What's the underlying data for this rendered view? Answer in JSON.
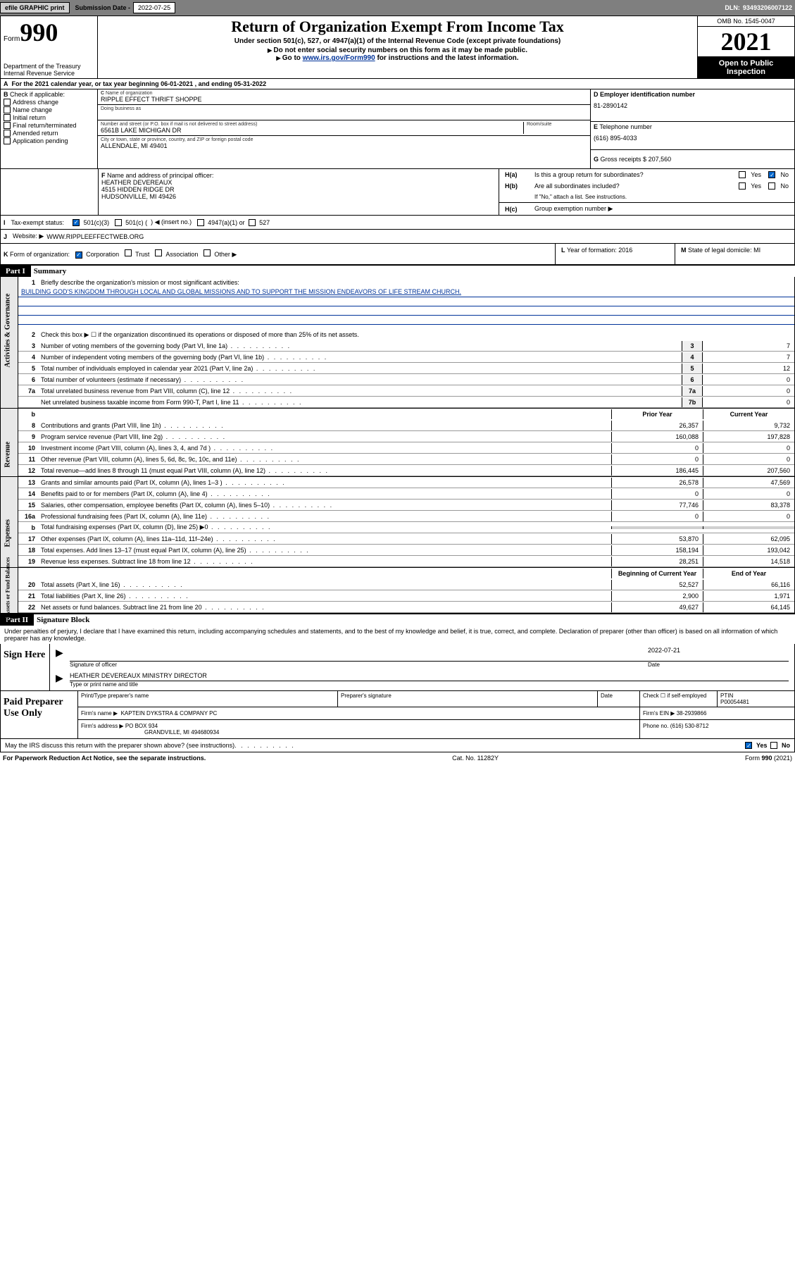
{
  "topbar": {
    "efile": "efile GRAPHIC print",
    "subdate_lbl": "Submission Date - ",
    "subdate": "2022-07-25",
    "dln_lbl": "DLN: ",
    "dln": "93493206007122"
  },
  "header": {
    "form_word": "Form",
    "form_num": "990",
    "dept": "Department of the Treasury\nInternal Revenue Service",
    "title": "Return of Organization Exempt From Income Tax",
    "sub": "Under section 501(c), 527, or 4947(a)(1) of the Internal Revenue Code (except private foundations)",
    "note1": "Do not enter social security numbers on this form as it may be made public.",
    "note2_pre": "Go to ",
    "note2_link": "www.irs.gov/Form990",
    "note2_post": " for instructions and the latest information.",
    "omb": "OMB No. 1545-0047",
    "year": "2021",
    "open": "Open to Public Inspection"
  },
  "rowA": "For the 2021 calendar year, or tax year beginning 06-01-2021   , and ending 05-31-2022",
  "boxB": {
    "lbl": "Check if applicable:",
    "items": [
      "Address change",
      "Name change",
      "Initial return",
      "Final return/terminated",
      "Amended return",
      "Application pending"
    ]
  },
  "boxC": {
    "name_lbl": "Name of organization",
    "name": "RIPPLE EFFECT THRIFT SHOPPE",
    "dba_lbl": "Doing business as",
    "addr_lbl": "Number and street (or P.O. box if mail is not delivered to street address)",
    "addr": "6561B LAKE MICHIGAN DR",
    "room_lbl": "Room/suite",
    "city_lbl": "City or town, state or province, country, and ZIP or foreign postal code",
    "city": "ALLENDALE, MI  49401"
  },
  "boxD": {
    "lbl": "Employer identification number",
    "val": "81-2890142"
  },
  "boxE": {
    "lbl": "Telephone number",
    "val": "(616) 895-4033"
  },
  "boxG": {
    "lbl": "Gross receipts $",
    "val": "207,560"
  },
  "boxF": {
    "lbl": "Name and address of principal officer:",
    "name": "HEATHER DEVEREAUX",
    "addr1": "4515 HIDDEN RIDGE DR",
    "addr2": "HUDSONVILLE, MI  49426"
  },
  "boxH": {
    "a_lbl": "Is this a group return for subordinates?",
    "b_lbl": "Are all subordinates included?",
    "b_note": "If \"No,\" attach a list. See instructions.",
    "c_lbl": "Group exemption number ▶"
  },
  "rowI": {
    "lbl": "Tax-exempt status:",
    "opt1": "501(c)(3)",
    "opt2_a": "501(c) (",
    "opt2_b": ") ◀ (insert no.)",
    "opt3": "4947(a)(1) or",
    "opt4": "527"
  },
  "rowJ": {
    "lbl": "Website: ▶",
    "val": "WWW.RIPPLEEFFECTWEB.ORG"
  },
  "rowK": {
    "lbl": "Form of organization:",
    "opts": [
      "Corporation",
      "Trust",
      "Association",
      "Other ▶"
    ]
  },
  "rowL": {
    "lbl": "Year of formation:",
    "val": "2016"
  },
  "rowM": {
    "lbl": "State of legal domicile:",
    "val": "MI"
  },
  "partI": {
    "num": "Part I",
    "title": "Summary"
  },
  "summary": {
    "l1": "Briefly describe the organization's mission or most significant activities:",
    "mission": "BUILDING GOD'S KINGDOM THROUGH LOCAL AND GLOBAL MISSIONS AND TO SUPPORT THE MISSION ENDEAVORS OF LIFE STREAM CHURCH.",
    "l2": "Check this box ▶ ☐  if the organization discontinued its operations or disposed of more than 25% of its net assets.",
    "lines_num": [
      {
        "n": "3",
        "t": "Number of voting members of the governing body (Part VI, line 1a)",
        "box": "3",
        "v": "7"
      },
      {
        "n": "4",
        "t": "Number of independent voting members of the governing body (Part VI, line 1b)",
        "box": "4",
        "v": "7"
      },
      {
        "n": "5",
        "t": "Total number of individuals employed in calendar year 2021 (Part V, line 2a)",
        "box": "5",
        "v": "12"
      },
      {
        "n": "6",
        "t": "Total number of volunteers (estimate if necessary)",
        "box": "6",
        "v": "0"
      },
      {
        "n": "7a",
        "t": "Total unrelated business revenue from Part VIII, column (C), line 12",
        "box": "7a",
        "v": "0"
      },
      {
        "n": "",
        "t": "Net unrelated business taxable income from Form 990-T, Part I, line 11",
        "box": "7b",
        "v": "0"
      }
    ],
    "col_hdr": {
      "b": "b",
      "prior": "Prior Year",
      "curr": "Current Year"
    },
    "revenue": [
      {
        "n": "8",
        "t": "Contributions and grants (Part VIII, line 1h)",
        "p": "26,357",
        "c": "9,732"
      },
      {
        "n": "9",
        "t": "Program service revenue (Part VIII, line 2g)",
        "p": "160,088",
        "c": "197,828"
      },
      {
        "n": "10",
        "t": "Investment income (Part VIII, column (A), lines 3, 4, and 7d )",
        "p": "0",
        "c": "0"
      },
      {
        "n": "11",
        "t": "Other revenue (Part VIII, column (A), lines 5, 6d, 8c, 9c, 10c, and 11e)",
        "p": "0",
        "c": "0"
      },
      {
        "n": "12",
        "t": "Total revenue—add lines 8 through 11 (must equal Part VIII, column (A), line 12)",
        "p": "186,445",
        "c": "207,560"
      }
    ],
    "expenses": [
      {
        "n": "13",
        "t": "Grants and similar amounts paid (Part IX, column (A), lines 1–3 )",
        "p": "26,578",
        "c": "47,569"
      },
      {
        "n": "14",
        "t": "Benefits paid to or for members (Part IX, column (A), line 4)",
        "p": "0",
        "c": "0"
      },
      {
        "n": "15",
        "t": "Salaries, other compensation, employee benefits (Part IX, column (A), lines 5–10)",
        "p": "77,746",
        "c": "83,378"
      },
      {
        "n": "16a",
        "t": "Professional fundraising fees (Part IX, column (A), line 11e)",
        "p": "0",
        "c": "0"
      },
      {
        "n": "b",
        "t": "Total fundraising expenses (Part IX, column (D), line 25) ▶0",
        "p": "",
        "c": "",
        "grey": true
      },
      {
        "n": "17",
        "t": "Other expenses (Part IX, column (A), lines 11a–11d, 11f–24e)",
        "p": "53,870",
        "c": "62,095"
      },
      {
        "n": "18",
        "t": "Total expenses. Add lines 13–17 (must equal Part IX, column (A), line 25)",
        "p": "158,194",
        "c": "193,042"
      },
      {
        "n": "19",
        "t": "Revenue less expenses. Subtract line 18 from line 12",
        "p": "28,251",
        "c": "14,518"
      }
    ],
    "net_hdr": {
      "b": "Beginning of Current Year",
      "e": "End of Year"
    },
    "netassets": [
      {
        "n": "20",
        "t": "Total assets (Part X, line 16)",
        "p": "52,527",
        "c": "66,116"
      },
      {
        "n": "21",
        "t": "Total liabilities (Part X, line 26)",
        "p": "2,900",
        "c": "1,971"
      },
      {
        "n": "22",
        "t": "Net assets or fund balances. Subtract line 21 from line 20",
        "p": "49,627",
        "c": "64,145"
      }
    ]
  },
  "vlabels": {
    "gov": "Activities & Governance",
    "rev": "Revenue",
    "exp": "Expenses",
    "net": "Net Assets or Fund Balances"
  },
  "partII": {
    "num": "Part II",
    "title": "Signature Block"
  },
  "penalties": "Under penalties of perjury, I declare that I have examined this return, including accompanying schedules and statements, and to the best of my knowledge and belief, it is true, correct, and complete. Declaration of preparer (other than officer) is based on all information of which preparer has any knowledge.",
  "sign": {
    "here": "Sign Here",
    "sig_lbl": "Signature of officer",
    "date_lbl": "Date",
    "date": "2022-07-21",
    "name": "HEATHER DEVEREAUX MINISTRY DIRECTOR",
    "name_lbl": "Type or print name and title"
  },
  "paid": {
    "lbl": "Paid Preparer Use Only",
    "h1": "Print/Type preparer's name",
    "h2": "Preparer's signature",
    "h3": "Date",
    "h4_lbl": "Check ☐ if self-employed",
    "h5_lbl": "PTIN",
    "ptin": "P00054481",
    "firm_lbl": "Firm's name    ▶",
    "firm": "KAPTEIN DYKSTRA & COMPANY PC",
    "ein_lbl": "Firm's EIN ▶",
    "ein": "38-2939866",
    "addr_lbl": "Firm's address ▶",
    "addr": "PO BOX 934",
    "addr2": "GRANDVILLE, MI  494680934",
    "phone_lbl": "Phone no.",
    "phone": "(616) 530-8712"
  },
  "discuss": "May the IRS discuss this return with the preparer shown above? (see instructions)",
  "footer": {
    "pra": "For Paperwork Reduction Act Notice, see the separate instructions.",
    "cat": "Cat. No. 11282Y",
    "form": "Form 990 (2021)"
  },
  "labels": {
    "yes": "Yes",
    "no": "No",
    "B": "B",
    "C": "C",
    "D": "D",
    "E": "E",
    "F": "F",
    "G": "G",
    "Ha": "H(a)",
    "Hb": "H(b)",
    "Hc": "H(c)",
    "I": "I",
    "J": "J",
    "K": "K",
    "L": "L",
    "M": "M",
    "A": "A"
  },
  "colors": {
    "link": "#003399",
    "checked": "#0066cc",
    "headerbg": "#000000"
  }
}
